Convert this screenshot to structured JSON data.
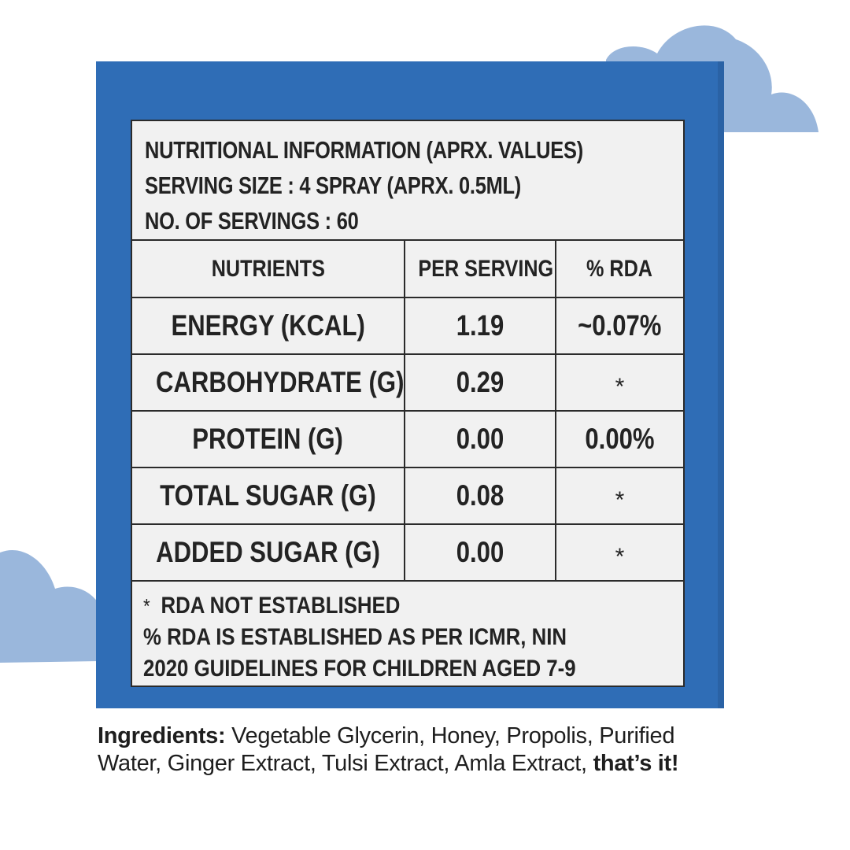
{
  "colors": {
    "panel_blue": "#2f6db6",
    "cloud_blue": "#9ab7dc",
    "card_bg": "#f1f1f1",
    "text_dark": "#232323"
  },
  "header": {
    "line1": "NUTRITIONAL INFORMATION (APRX. VALUES)",
    "line2": "SERVING SIZE : 4 SPRAY (APRX. 0.5ML)",
    "line3": "NO. OF SERVINGS : 60"
  },
  "table": {
    "columns": [
      "NUTRIENTS",
      "PER SERVING",
      "% RDA"
    ],
    "rows": [
      {
        "nutrient": "ENERGY (KCAL)",
        "per_serving": "1.19",
        "rda": "~0.07%"
      },
      {
        "nutrient": "CARBOHYDRATE (G)",
        "per_serving": "0.29",
        "rda": "*"
      },
      {
        "nutrient": "PROTEIN (G)",
        "per_serving": "0.00",
        "rda": "0.00%"
      },
      {
        "nutrient": "TOTAL SUGAR (G)",
        "per_serving": "0.08",
        "rda": "*"
      },
      {
        "nutrient": "ADDED SUGAR (G)",
        "per_serving": "0.00",
        "rda": "*"
      }
    ]
  },
  "footer": {
    "star": "*",
    "note1": "RDA NOT ESTABLISHED",
    "note2": "% RDA IS ESTABLISHED AS PER ICMR, NIN",
    "note3": "2020 GUIDELINES FOR CHILDREN AGED 7-9"
  },
  "ingredients": {
    "label": "Ingredients:",
    "list": " Vegetable Glycerin, Honey, Propolis, Purified Water, Ginger Extract, Tulsi Extract, Amla Extract, ",
    "closing": "that’s it!"
  }
}
